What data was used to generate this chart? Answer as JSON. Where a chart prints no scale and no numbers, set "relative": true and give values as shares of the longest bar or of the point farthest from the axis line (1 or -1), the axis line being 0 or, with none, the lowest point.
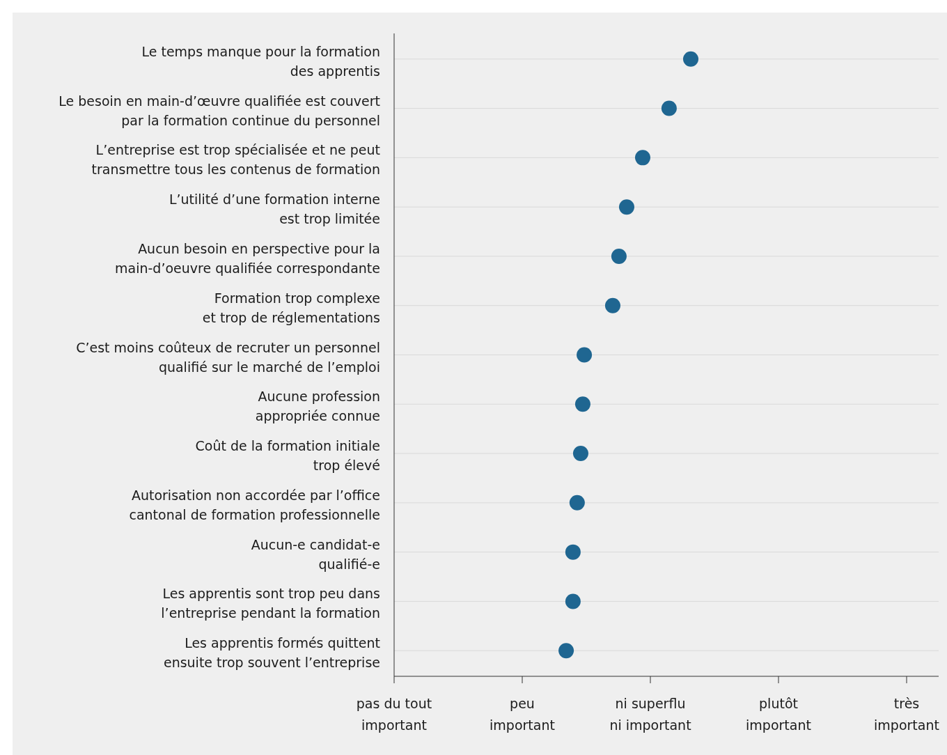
{
  "chart_data": {
    "type": "scatter",
    "orientation": "horizontal",
    "relative": true,
    "categories": [
      "Le temps manque pour la formation\ndes apprentis",
      "Le besoin en main-d’œuvre qualifiée est couvert\npar la formation continue du personnel",
      "L’entreprise est trop spécialisée et ne peut\ntransmettre tous les contenus de formation",
      "L’utilité d’une formation interne\nest trop limitée",
      "Aucun besoin en perspective pour la\nmain-d’oeuvre qualifiée correspondante",
      "Formation trop complexe\net trop de réglementations",
      "C’est moins coûteux de recruter un personnel\nqualifié sur le marché de l’emploi",
      "Aucune profession\nappropriée connue",
      "Coût de la formation initiale\ntrop élevé",
      "Autorisation non accordée par l’office\ncantonal de formation professionnelle",
      "Aucun-e candidat-e\nqualifié-e",
      "Les apprentis sont trop peu dans\nl’entreprise pendant la formation",
      "Les apprentis formés quittent\nensuite trop souvent l’entreprise"
    ],
    "values": [
      1,
      0.927,
      0.838,
      0.784,
      0.758,
      0.737,
      0.641,
      0.636,
      0.629,
      0.617,
      0.603,
      0.603,
      0.58
    ],
    "color": "#1f6691",
    "marker": "circle",
    "grid": "y",
    "annotations": [
      "pas du tout\nimportant",
      "peu\nimportant",
      "ni superflu\nni important",
      "plutôt\nimportant",
      "très\nimportant"
    ]
  }
}
